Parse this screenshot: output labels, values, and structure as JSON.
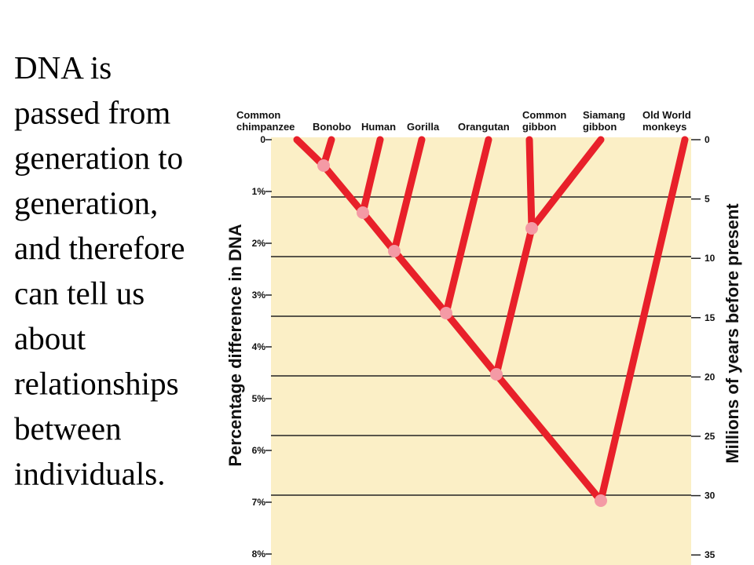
{
  "slide_text": [
    "DNA is",
    "passed from",
    "generation to",
    "generation,",
    "and therefore",
    "can tell us",
    "about",
    "relationships",
    "between",
    "individuals."
  ],
  "left_axis": {
    "title": "Percentage difference in DNA",
    "ticks": [
      "0",
      "1%",
      "2%",
      "3%",
      "4%",
      "5%",
      "6%",
      "7%",
      "8%"
    ]
  },
  "right_axis": {
    "title": "Millions of years before present",
    "ticks": [
      "0",
      "5",
      "10",
      "15",
      "20",
      "25",
      "30",
      "35"
    ]
  },
  "species": [
    {
      "lines": [
        "Common",
        "chimpanzee"
      ]
    },
    {
      "lines": [
        "Bonobo"
      ]
    },
    {
      "lines": [
        "Human"
      ]
    },
    {
      "lines": [
        "Gorilla"
      ]
    },
    {
      "lines": [
        "Orangutan"
      ]
    },
    {
      "lines": [
        "Common",
        "gibbon"
      ]
    },
    {
      "lines": [
        "Siamang",
        "gibbon"
      ]
    },
    {
      "lines": [
        "Old World",
        "monkeys"
      ]
    }
  ]
}
